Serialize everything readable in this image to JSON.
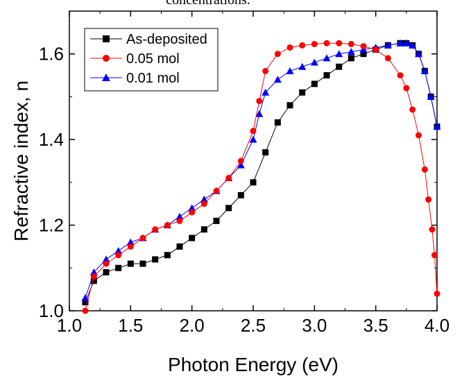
{
  "caption_fragment": "concentrations.",
  "chart_data": {
    "type": "scatter",
    "title": "",
    "xlabel": "Photon Energy (eV)",
    "ylabel": "Refractive index, n",
    "xlim": [
      1.0,
      4.0
    ],
    "ylim": [
      1.0,
      1.7
    ],
    "xticks": [
      "1.0",
      "1.5",
      "2.0",
      "2.5",
      "3.0",
      "3.5",
      "4.0"
    ],
    "yticks": [
      "1.0",
      "1.2",
      "1.4",
      "1.6"
    ],
    "grid": false,
    "legend_position": "top-left",
    "series": [
      {
        "name": "As-deposited",
        "color": "#000000",
        "marker": "square",
        "x": [
          1.13,
          1.2,
          1.3,
          1.4,
          1.5,
          1.6,
          1.7,
          1.8,
          1.9,
          2.0,
          2.1,
          2.2,
          2.3,
          2.4,
          2.5,
          2.6,
          2.7,
          2.8,
          2.9,
          3.0,
          3.1,
          3.2,
          3.3,
          3.4,
          3.5,
          3.6,
          3.7,
          3.75,
          3.8,
          3.85,
          3.9,
          3.95,
          4.0
        ],
        "y": [
          1.02,
          1.07,
          1.09,
          1.1,
          1.11,
          1.11,
          1.12,
          1.13,
          1.15,
          1.17,
          1.19,
          1.21,
          1.24,
          1.27,
          1.3,
          1.37,
          1.44,
          1.48,
          1.51,
          1.53,
          1.55,
          1.57,
          1.59,
          1.6,
          1.61,
          1.62,
          1.625,
          1.625,
          1.62,
          1.6,
          1.56,
          1.5,
          1.43
        ]
      },
      {
        "name": "0.05 mol",
        "color": "#ff0000",
        "marker": "circle",
        "x": [
          1.13,
          1.2,
          1.3,
          1.4,
          1.5,
          1.6,
          1.7,
          1.8,
          1.9,
          2.0,
          2.1,
          2.2,
          2.3,
          2.4,
          2.5,
          2.55,
          2.6,
          2.7,
          2.8,
          2.9,
          3.0,
          3.1,
          3.2,
          3.3,
          3.4,
          3.5,
          3.6,
          3.7,
          3.75,
          3.8,
          3.85,
          3.9,
          3.93,
          3.96,
          3.98,
          4.0
        ],
        "y": [
          1.0,
          1.08,
          1.11,
          1.13,
          1.15,
          1.17,
          1.19,
          1.2,
          1.21,
          1.23,
          1.25,
          1.28,
          1.31,
          1.35,
          1.42,
          1.49,
          1.56,
          1.6,
          1.615,
          1.62,
          1.623,
          1.625,
          1.625,
          1.623,
          1.618,
          1.61,
          1.59,
          1.55,
          1.52,
          1.47,
          1.41,
          1.33,
          1.26,
          1.19,
          1.13,
          1.04
        ]
      },
      {
        "name": "0.01 mol",
        "color": "#0000ff",
        "marker": "triangle",
        "x": [
          1.13,
          1.2,
          1.3,
          1.4,
          1.5,
          1.6,
          1.7,
          1.8,
          1.9,
          2.0,
          2.1,
          2.2,
          2.3,
          2.4,
          2.5,
          2.55,
          2.6,
          2.7,
          2.8,
          2.9,
          3.0,
          3.1,
          3.2,
          3.3,
          3.4,
          3.5,
          3.6,
          3.7,
          3.75,
          3.8,
          3.85,
          3.9,
          3.95,
          4.0
        ],
        "y": [
          1.03,
          1.09,
          1.12,
          1.14,
          1.16,
          1.17,
          1.19,
          1.2,
          1.22,
          1.24,
          1.26,
          1.28,
          1.31,
          1.34,
          1.4,
          1.46,
          1.51,
          1.54,
          1.56,
          1.57,
          1.58,
          1.59,
          1.6,
          1.605,
          1.61,
          1.615,
          1.62,
          1.625,
          1.625,
          1.62,
          1.6,
          1.56,
          1.5,
          1.43
        ]
      }
    ]
  }
}
